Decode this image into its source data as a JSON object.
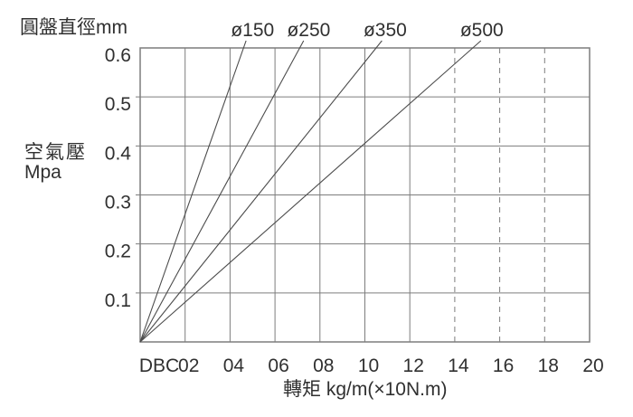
{
  "chart_data": {
    "type": "line",
    "diameter_axis_title": "圓盤直徑mm",
    "ylabel": "空氣壓",
    "ylabel_unit": "Mpa",
    "xlabel": "轉矩 kg/m(×10N.m)",
    "x_prefix_label": "DBC",
    "xlim": [
      0,
      20
    ],
    "ylim": [
      0,
      0.6
    ],
    "x_ticks": [
      2,
      4,
      6,
      8,
      10,
      12,
      14,
      16,
      18,
      20
    ],
    "x_tick_labels": [
      "02",
      "04",
      "06",
      "08",
      "10",
      "12",
      "14",
      "16",
      "18",
      "20"
    ],
    "x_dashed_from": 14,
    "y_ticks": [
      0.1,
      0.2,
      0.3,
      0.4,
      0.5,
      0.6
    ],
    "y_tick_labels": [
      "0.1",
      "0.2",
      "0.3",
      "0.4",
      "0.5",
      "0.6"
    ],
    "grid": true,
    "legend_position": "top",
    "series": [
      {
        "name": "ø150",
        "points": [
          {
            "torque": 0,
            "pressure": 0
          },
          {
            "torque": 4.6,
            "pressure": 0.6
          }
        ]
      },
      {
        "name": "ø250",
        "points": [
          {
            "torque": 0,
            "pressure": 0
          },
          {
            "torque": 7.1,
            "pressure": 0.6
          }
        ]
      },
      {
        "name": "ø350",
        "points": [
          {
            "torque": 0,
            "pressure": 0
          },
          {
            "torque": 10.5,
            "pressure": 0.6
          }
        ]
      },
      {
        "name": "ø500",
        "points": [
          {
            "torque": 0,
            "pressure": 0
          },
          {
            "torque": 14.8,
            "pressure": 0.6
          }
        ]
      }
    ],
    "colors": {
      "grid": "#7d7d7d",
      "line": "#4c4c4c",
      "text": "#303030",
      "background": "#ffffff"
    }
  }
}
